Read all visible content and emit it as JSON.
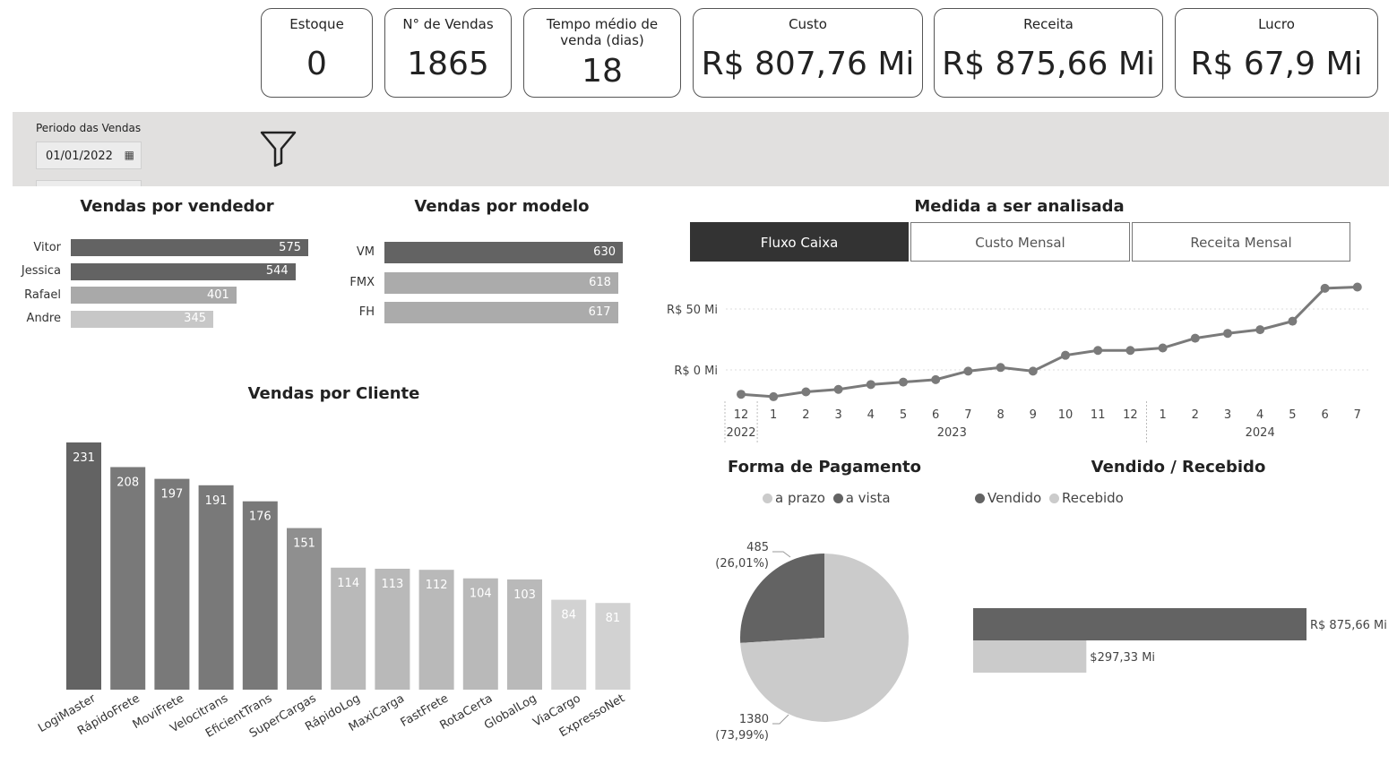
{
  "kpis": {
    "estoque": {
      "label": "Estoque",
      "value": "0"
    },
    "vendas": {
      "label": "N° de Vendas",
      "value": "1865"
    },
    "tempo": {
      "label": "Tempo médio de venda (dias)",
      "value": "18"
    },
    "custo": {
      "label": "Custo",
      "value": "R$ 807,76 Mi"
    },
    "receita": {
      "label": "Receita",
      "value": "R$ 875,66 Mi"
    },
    "lucro": {
      "label": "Lucro",
      "value": "R$ 67,9 Mi"
    }
  },
  "filter": {
    "label": "Periodo das Vendas",
    "date": "01/01/2022"
  },
  "vendedor": {
    "title": "Vendas por vendedor",
    "items": [
      {
        "name": "Vitor",
        "value": "575",
        "color": "#636363"
      },
      {
        "name": "Jessica",
        "value": "544",
        "color": "#636363"
      },
      {
        "name": "Rafael",
        "value": "401",
        "color": "#a9a9a9"
      },
      {
        "name": "Andre",
        "value": "345",
        "color": "#c7c7c7"
      }
    ]
  },
  "modelo": {
    "title": "Vendas por modelo",
    "items": [
      {
        "name": "VM",
        "value": "630",
        "color": "#636363"
      },
      {
        "name": "FMX",
        "value": "618",
        "color": "#ababab"
      },
      {
        "name": "FH",
        "value": "617",
        "color": "#ababab"
      }
    ]
  },
  "medida": {
    "title": "Medida a ser analisada",
    "buttons": [
      "Fluxo Caixa",
      "Custo Mensal",
      "Receita Mensal"
    ],
    "active": 0
  },
  "chart_data": [
    {
      "type": "bar",
      "title": "Vendas por Cliente",
      "categories": [
        "LogiMaster",
        "RápidoFrete",
        "MoviFrete",
        "Velocitrans",
        "EficientTrans",
        "SuperCargas",
        "RápidoLog",
        "MaxiCarga",
        "FastFrete",
        "RotaCerta",
        "GlobalLog",
        "ViaCargo",
        "ExpressoNet"
      ],
      "values": [
        231,
        208,
        197,
        191,
        176,
        151,
        114,
        113,
        112,
        104,
        103,
        84,
        81
      ],
      "colors": [
        "#636363",
        "#797979",
        "#797979",
        "#797979",
        "#797979",
        "#8f8f8f",
        "#b9b9b9",
        "#b9b9b9",
        "#b9b9b9",
        "#b9b9b9",
        "#b9b9b9",
        "#d2d2d2",
        "#d2d2d2"
      ],
      "ylim": [
        0,
        231
      ]
    },
    {
      "type": "line",
      "title": "Fluxo Caixa",
      "x": [
        "12",
        "1",
        "2",
        "3",
        "4",
        "5",
        "6",
        "7",
        "8",
        "9",
        "10",
        "11",
        "12",
        "1",
        "2",
        "3",
        "4",
        "5",
        "6",
        "7"
      ],
      "years": [
        "2022",
        "2023",
        "2024"
      ],
      "y": [
        -20,
        -22,
        -18,
        -16,
        -12,
        -10,
        -8,
        -1,
        2,
        -1,
        12,
        16,
        16,
        18,
        26,
        30,
        33,
        40,
        67,
        68
      ],
      "yticks": [
        "R$ 50 Mi",
        "R$ 0 Mi"
      ],
      "color": "#7a7a7a"
    },
    {
      "type": "pie",
      "title": "Forma de Pagamento",
      "legend": [
        "a prazo",
        "a vista"
      ],
      "slices": [
        {
          "name": "a prazo",
          "value": 1380,
          "pct": "(73,99%)",
          "color": "#cbcbcb"
        },
        {
          "name": "a vista",
          "value": 485,
          "pct": "(26,01%)",
          "color": "#636363"
        }
      ]
    },
    {
      "type": "bar",
      "title": "Vendido / Recebido",
      "legend": [
        "Vendido",
        "Recebido"
      ],
      "series": [
        {
          "name": "Vendido",
          "value": 875.66,
          "label": "R$ 875,66 Mi",
          "color": "#636363"
        },
        {
          "name": "Recebido",
          "value": 297.33,
          "label": "$297,33 Mi",
          "color": "#cbcbcb"
        }
      ]
    }
  ]
}
